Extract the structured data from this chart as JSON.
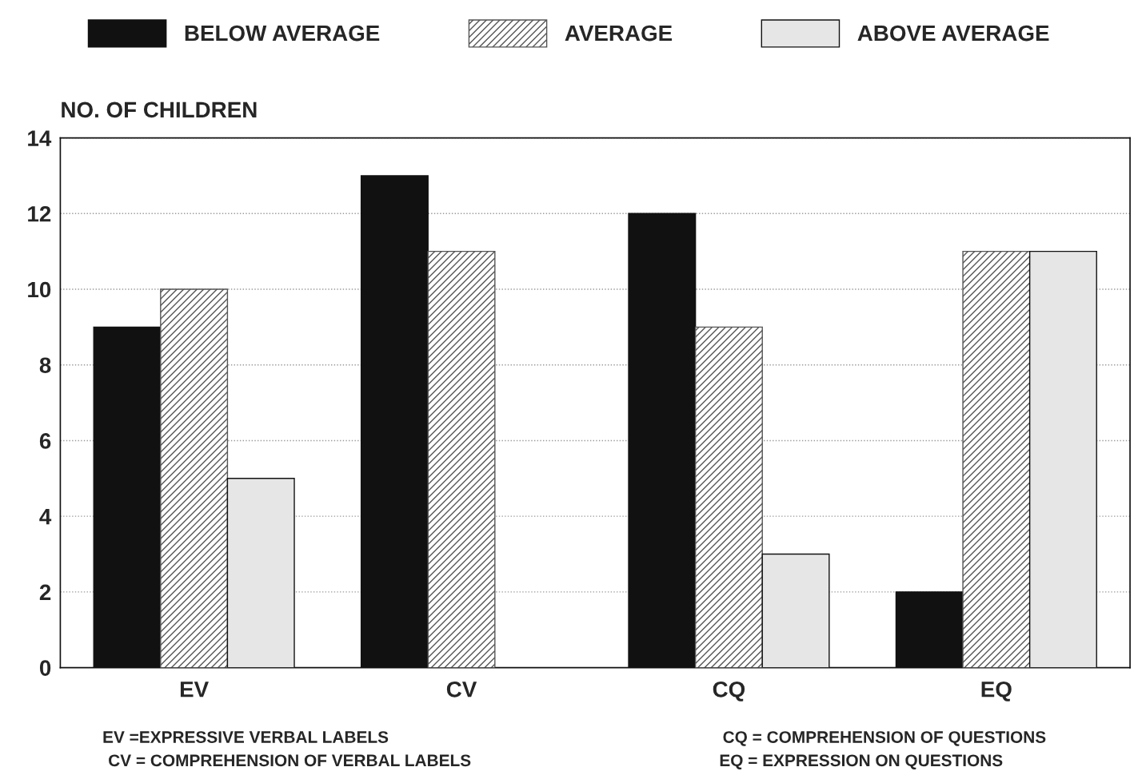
{
  "chart_data": {
    "type": "bar",
    "ylabel": "NO. OF CHILDREN",
    "categories": [
      "EV",
      "CV",
      "CQ",
      "EQ"
    ],
    "series": [
      {
        "name": "BELOW AVERAGE",
        "color": "#111111",
        "values": [
          9,
          13,
          12,
          2
        ]
      },
      {
        "name": "AVERAGE",
        "color": "#555555",
        "values": [
          10,
          11,
          9,
          11
        ]
      },
      {
        "name": "ABOVE AVERAGE",
        "color": "#e6e6e6",
        "values": [
          5,
          0,
          3,
          11
        ]
      }
    ],
    "ylim": [
      0,
      14
    ],
    "yticks": [
      0,
      2,
      4,
      6,
      8,
      10,
      12,
      14
    ],
    "grid": "y",
    "legend": "top",
    "annotations": [
      "EV =EXPRESSIVE VERBAL LABELS",
      "CV = COMPREHENSION OF VERBAL LABELS",
      "CQ = COMPREHENSION OF QUESTIONS",
      "EQ = EXPRESSION ON QUESTIONS"
    ]
  }
}
